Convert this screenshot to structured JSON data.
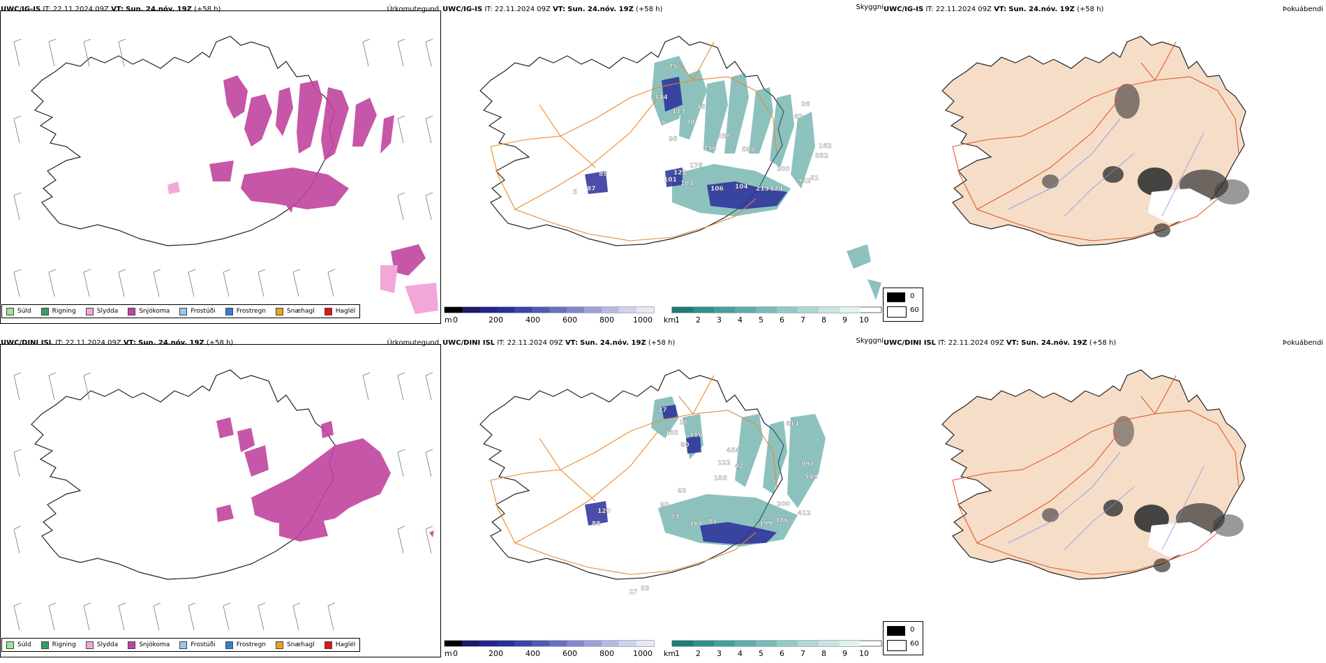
{
  "colors": {
    "snow": "#c0449e",
    "sleet": "#f2a7d8",
    "teal": "#2f8f8a",
    "navy": "#2a2e9a",
    "road": "#e8892a",
    "land": "#f6ddc8",
    "water": "#7a8fe8"
  },
  "rows": [
    {
      "model": "UWC/IG-IS",
      "init_label": "IT:",
      "init_value": "22.11.2024 09Z",
      "valid_label": "VT:",
      "valid_value": "Sun. 24.nóv. 19Z",
      "lead": "(+58 h)",
      "cloud_labels": [
        "75",
        "144",
        "113",
        "70",
        "6",
        "46",
        "96",
        "558",
        "156",
        "588",
        "36",
        "63",
        "162",
        "552",
        "176",
        "300",
        "89",
        "121",
        "87",
        "101",
        "5",
        "181",
        "106",
        "104",
        "213",
        "124",
        "942",
        "51"
      ]
    },
    {
      "model": "UWC/DINI ISL",
      "init_label": "IT:",
      "init_value": "22.11.2024 09Z",
      "valid_label": "VT:",
      "valid_value": "Sun. 24.nóv. 19Z",
      "lead": "(+58 h)",
      "cloud_labels": [
        "27",
        "18",
        "155",
        "180",
        "80",
        "614",
        "454",
        "122",
        "42",
        "156",
        "897",
        "548",
        "120",
        "93",
        "93",
        "88",
        "27",
        "168",
        "81",
        "200",
        "199",
        "186",
        "412",
        "17",
        "53"
      ]
    }
  ],
  "panel_types": {
    "precip": "Úrkomutegund",
    "cloud": "Skyggni",
    "fog": "Þokuábendi"
  },
  "precip_legend": [
    {
      "label": "Súld",
      "color": "#9be39b"
    },
    {
      "label": "Rigning",
      "color": "#3d9a6a"
    },
    {
      "label": "Slydda",
      "color": "#f2a7d8"
    },
    {
      "label": "Snjókoma",
      "color": "#c0449e"
    },
    {
      "label": "Frostúði",
      "color": "#9cc6f0"
    },
    {
      "label": "Frostregn",
      "color": "#3a7bd5"
    },
    {
      "label": "Snæhagl",
      "color": "#f0a020"
    },
    {
      "label": "Haglél",
      "color": "#e01515"
    }
  ],
  "cloud_base_scale": {
    "unit": "m",
    "ticks": [
      "0",
      "200",
      "400",
      "600",
      "800",
      "1000"
    ]
  },
  "visibility_scale": {
    "unit": "km",
    "ticks": [
      "1",
      "2",
      "3",
      "4",
      "5",
      "6",
      "7",
      "8",
      "9",
      "10"
    ]
  },
  "fog_scale": {
    "values": [
      "0",
      "60"
    ]
  }
}
